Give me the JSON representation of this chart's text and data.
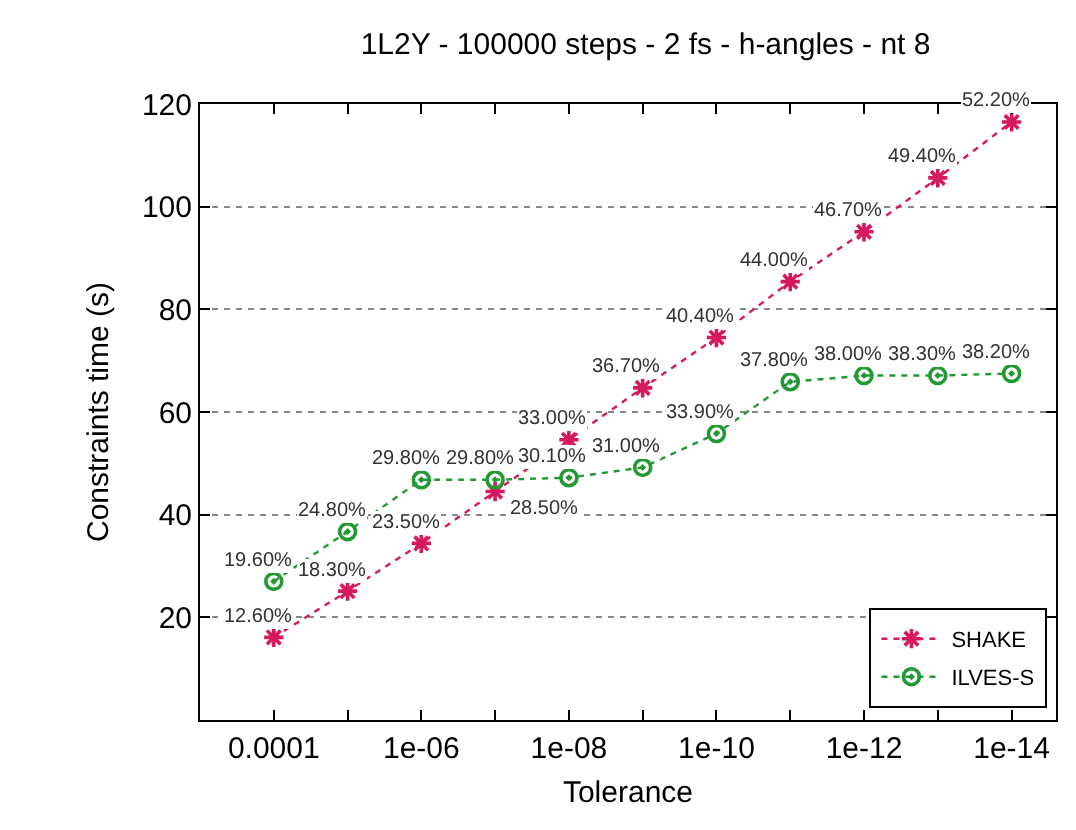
{
  "chart_data": {
    "type": "line",
    "title": "1L2Y - 100000 steps - 2 fs - h-angles - nt 8",
    "xlabel": "Tolerance",
    "ylabel": "Constraints time (s)",
    "x": [
      0.0001,
      1e-05,
      1e-06,
      1e-07,
      1e-08,
      1e-09,
      1e-10,
      1e-11,
      1e-12,
      1e-13,
      1e-14
    ],
    "log": "x",
    "xlim": [
      0.001,
      2.5e-15
    ],
    "xticks": [
      0.0001,
      {
        "value": 1e-05,
        "label": null
      },
      {
        "value": 1e-06,
        "label": "1e-06"
      },
      {
        "value": 1e-07,
        "label": null
      },
      {
        "value": 1e-08,
        "label": "1e-08"
      },
      {
        "value": 1e-09,
        "label": null
      },
      {
        "value": 1e-10,
        "label": "1e-10"
      },
      {
        "value": 1e-11,
        "label": null
      },
      {
        "value": 1e-12,
        "label": "1e-12"
      },
      {
        "value": 1e-13,
        "label": null
      },
      {
        "value": 1e-14,
        "label": "1e-14"
      }
    ],
    "ylim": [
      0,
      120
    ],
    "yticks": [
      20,
      40,
      60,
      80,
      100,
      120
    ],
    "grid": "y",
    "legend": "bottom right",
    "line_style": "dotted",
    "series": [
      {
        "name": "SHAKE",
        "color": "#d6185e",
        "marker": "cross",
        "values": [
          16.1,
          25.1,
          34.4,
          44.5,
          54.6,
          64.7,
          74.5,
          85.4,
          95.1,
          105.6,
          116.5
        ]
      },
      {
        "name": "ILVES-S",
        "color": "#229933",
        "marker": "circle",
        "values": [
          27.0,
          36.7,
          46.8,
          46.8,
          47.2,
          49.2,
          55.8,
          65.9,
          67.1,
          67.1,
          67.5
        ]
      }
    ],
    "annotations": [
      {
        "text": "12.60%",
        "x": 0.0001,
        "y": 16.1
      },
      {
        "text": "18.30%",
        "x": 1e-05,
        "y": 25.1
      },
      {
        "text": "23.50%",
        "x": 1e-06,
        "y": 34.4
      },
      {
        "text": "28.50%",
        "x": 1e-07,
        "y": 44.5
      },
      {
        "text": "33.00%",
        "x": 1e-08,
        "y": 54.6
      },
      {
        "text": "36.70%",
        "x": 1e-09,
        "y": 64.7
      },
      {
        "text": "40.40%",
        "x": 1e-10,
        "y": 74.5
      },
      {
        "text": "44.00%",
        "x": 1e-11,
        "y": 85.4
      },
      {
        "text": "46.70%",
        "x": 1e-12,
        "y": 95.1
      },
      {
        "text": "49.40%",
        "x": 1e-13,
        "y": 105.6
      },
      {
        "text": "52.20%",
        "x": 1e-14,
        "y": 116.5
      },
      {
        "text": "19.60%",
        "x": 0.0001,
        "y": 27.0
      },
      {
        "text": "24.80%",
        "x": 1e-05,
        "y": 36.7
      },
      {
        "text": "29.80%",
        "x": 1e-06,
        "y": 46.8
      },
      {
        "text": "29.80%",
        "x": 1e-07,
        "y": 46.8
      },
      {
        "text": "30.10%",
        "x": 1e-08,
        "y": 47.2
      },
      {
        "text": "31.00%",
        "x": 1e-09,
        "y": 49.2
      },
      {
        "text": "33.90%",
        "x": 1e-10,
        "y": 55.8
      },
      {
        "text": "37.80%",
        "x": 1e-11,
        "y": 65.9
      },
      {
        "text": "38.00%",
        "x": 1e-12,
        "y": 67.1
      },
      {
        "text": "38.30%",
        "x": 1e-13,
        "y": 67.1
      },
      {
        "text": "38.20%",
        "x": 1e-14,
        "y": 67.5
      }
    ]
  }
}
